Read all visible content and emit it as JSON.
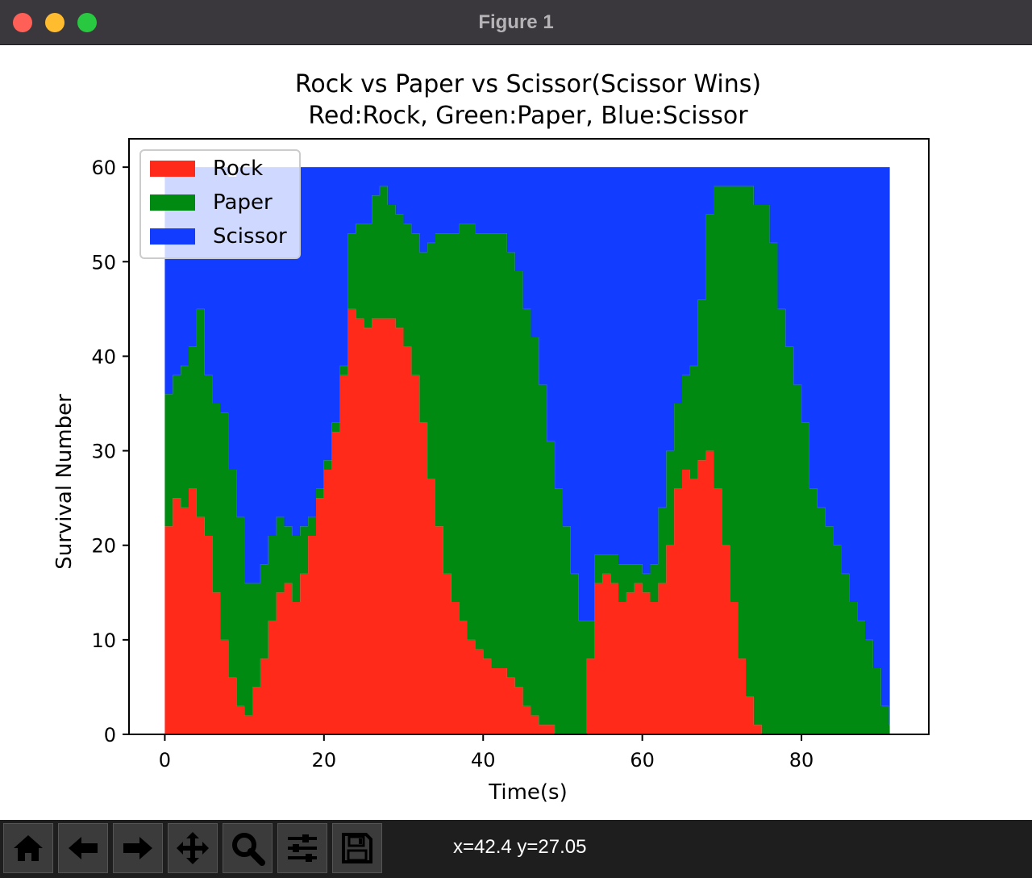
{
  "window": {
    "title": "Figure 1",
    "controls": [
      "close-button",
      "minimize-button",
      "zoom-button"
    ]
  },
  "toolbar": {
    "tools": [
      "home-icon",
      "back-icon",
      "forward-icon",
      "pan-icon",
      "zoom-icon",
      "configure-icon",
      "save-icon"
    ],
    "coords": "x=42.4 y=27.05"
  },
  "colors": {
    "rock": "#ff2a1a",
    "paper": "#008a12",
    "scissor": "#123cff"
  },
  "chart_data": {
    "type": "area",
    "title": "Rock vs Paper vs Scissor(Scissor Wins)",
    "subtitle": "Red:Rock, Green:Paper, Blue:Scissor",
    "xlabel": "Time(s)",
    "ylabel": "Survival Number",
    "xlim": [
      -4.5,
      96
    ],
    "ylim": [
      0,
      63
    ],
    "xticks": [
      0,
      20,
      40,
      60,
      80
    ],
    "yticks": [
      0,
      10,
      20,
      30,
      40,
      50,
      60
    ],
    "legend": {
      "placement": "top-left",
      "entries": [
        "Rock",
        "Paper",
        "Scissor"
      ]
    },
    "stacked": true,
    "x": [
      0,
      1,
      2,
      3,
      4,
      5,
      6,
      7,
      8,
      9,
      10,
      11,
      12,
      13,
      14,
      15,
      16,
      17,
      18,
      19,
      20,
      21,
      22,
      23,
      24,
      25,
      26,
      27,
      28,
      29,
      30,
      31,
      32,
      33,
      34,
      35,
      36,
      37,
      38,
      39,
      40,
      41,
      42,
      43,
      44,
      45,
      46,
      47,
      48,
      49,
      50,
      51,
      52,
      53,
      54,
      55,
      56,
      57,
      58,
      59,
      60,
      61,
      62,
      63,
      64,
      65,
      66,
      67,
      68,
      69,
      70,
      71,
      72,
      73,
      74,
      75,
      76,
      77,
      78,
      79,
      80,
      81,
      82,
      83,
      84,
      85,
      86,
      87,
      88,
      89,
      90,
      91
    ],
    "series": [
      {
        "name": "Rock",
        "values": [
          22,
          25,
          24,
          26,
          23,
          21,
          15,
          10,
          6,
          3,
          2,
          5,
          8,
          12,
          15,
          16,
          14,
          17,
          21,
          25,
          28,
          32,
          38,
          45,
          44,
          43,
          44,
          44,
          44,
          43,
          41,
          38,
          33,
          27,
          22,
          17,
          14,
          12,
          10,
          9,
          8,
          7,
          7,
          6,
          5,
          3,
          2,
          1,
          1,
          0,
          0,
          0,
          0,
          8,
          16,
          17,
          16,
          14,
          15,
          16,
          15,
          14,
          16,
          20,
          26,
          28,
          27,
          29,
          30,
          26,
          20,
          14,
          8,
          4,
          1,
          0,
          0,
          0,
          0,
          0,
          0,
          0,
          0,
          0,
          0,
          0,
          0,
          0,
          0,
          0,
          0,
          0
        ]
      },
      {
        "name": "Paper",
        "values": [
          14,
          13,
          15,
          15,
          22,
          17,
          20,
          24,
          22,
          20,
          14,
          11,
          10,
          9,
          8,
          6,
          7,
          5,
          2,
          1,
          1,
          1,
          1,
          8,
          10,
          11,
          13,
          14,
          12,
          12,
          13,
          15,
          18,
          25,
          31,
          36,
          39,
          42,
          44,
          44,
          45,
          46,
          46,
          45,
          44,
          42,
          40,
          36,
          30,
          26,
          22,
          17,
          12,
          4,
          3,
          2,
          3,
          4,
          3,
          2,
          2,
          4,
          8,
          10,
          9,
          10,
          12,
          17,
          25,
          32,
          38,
          44,
          50,
          54,
          55,
          56,
          52,
          45,
          41,
          37,
          33,
          26,
          24,
          22,
          20,
          17,
          14,
          12,
          10,
          7,
          3,
          1
        ]
      },
      {
        "name": "Scissor",
        "values": [
          24,
          22,
          21,
          19,
          15,
          22,
          25,
          26,
          31,
          37,
          44,
          44,
          42,
          39,
          37,
          38,
          39,
          38,
          37,
          34,
          31,
          27,
          21,
          7,
          6,
          6,
          3,
          2,
          4,
          5,
          6,
          7,
          9,
          8,
          7,
          7,
          7,
          6,
          6,
          7,
          7,
          7,
          7,
          9,
          11,
          15,
          18,
          23,
          29,
          34,
          38,
          43,
          48,
          48,
          41,
          41,
          41,
          42,
          42,
          42,
          43,
          42,
          36,
          30,
          25,
          22,
          21,
          14,
          5,
          2,
          2,
          2,
          2,
          2,
          4,
          4,
          8,
          15,
          19,
          23,
          27,
          34,
          36,
          38,
          40,
          43,
          46,
          48,
          50,
          53,
          57,
          59
        ]
      }
    ]
  }
}
